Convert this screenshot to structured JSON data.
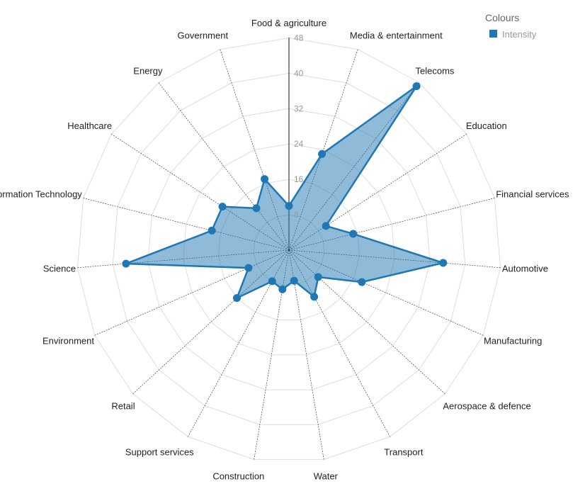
{
  "chart_data": {
    "type": "radar",
    "r_max": 48,
    "ticks": [
      8,
      16,
      24,
      32,
      40,
      48
    ],
    "tick_labels": [
      "8",
      "16",
      "24",
      "32",
      "40",
      "48"
    ],
    "categories": [
      "Food & agriculture",
      "Media & entertainment",
      "Telecoms",
      "Education",
      "Financial services",
      "Automotive",
      "Manufacturing",
      "Aerospace & defence",
      "Transport",
      "Water",
      "Construction",
      "Support services",
      "Retail",
      "Environment",
      "Science",
      "Information Technology",
      "Healthcare",
      "Energy",
      "Government"
    ],
    "series": [
      {
        "name": "Intensity",
        "color": "#1f77b4",
        "values": [
          10,
          23,
          47,
          10,
          15,
          35,
          18,
          9,
          12,
          7,
          9,
          8,
          16,
          10,
          37,
          18,
          18,
          12,
          17
        ]
      }
    ],
    "legend": {
      "title": "Colours",
      "position": "top-right"
    },
    "grid": true
  }
}
